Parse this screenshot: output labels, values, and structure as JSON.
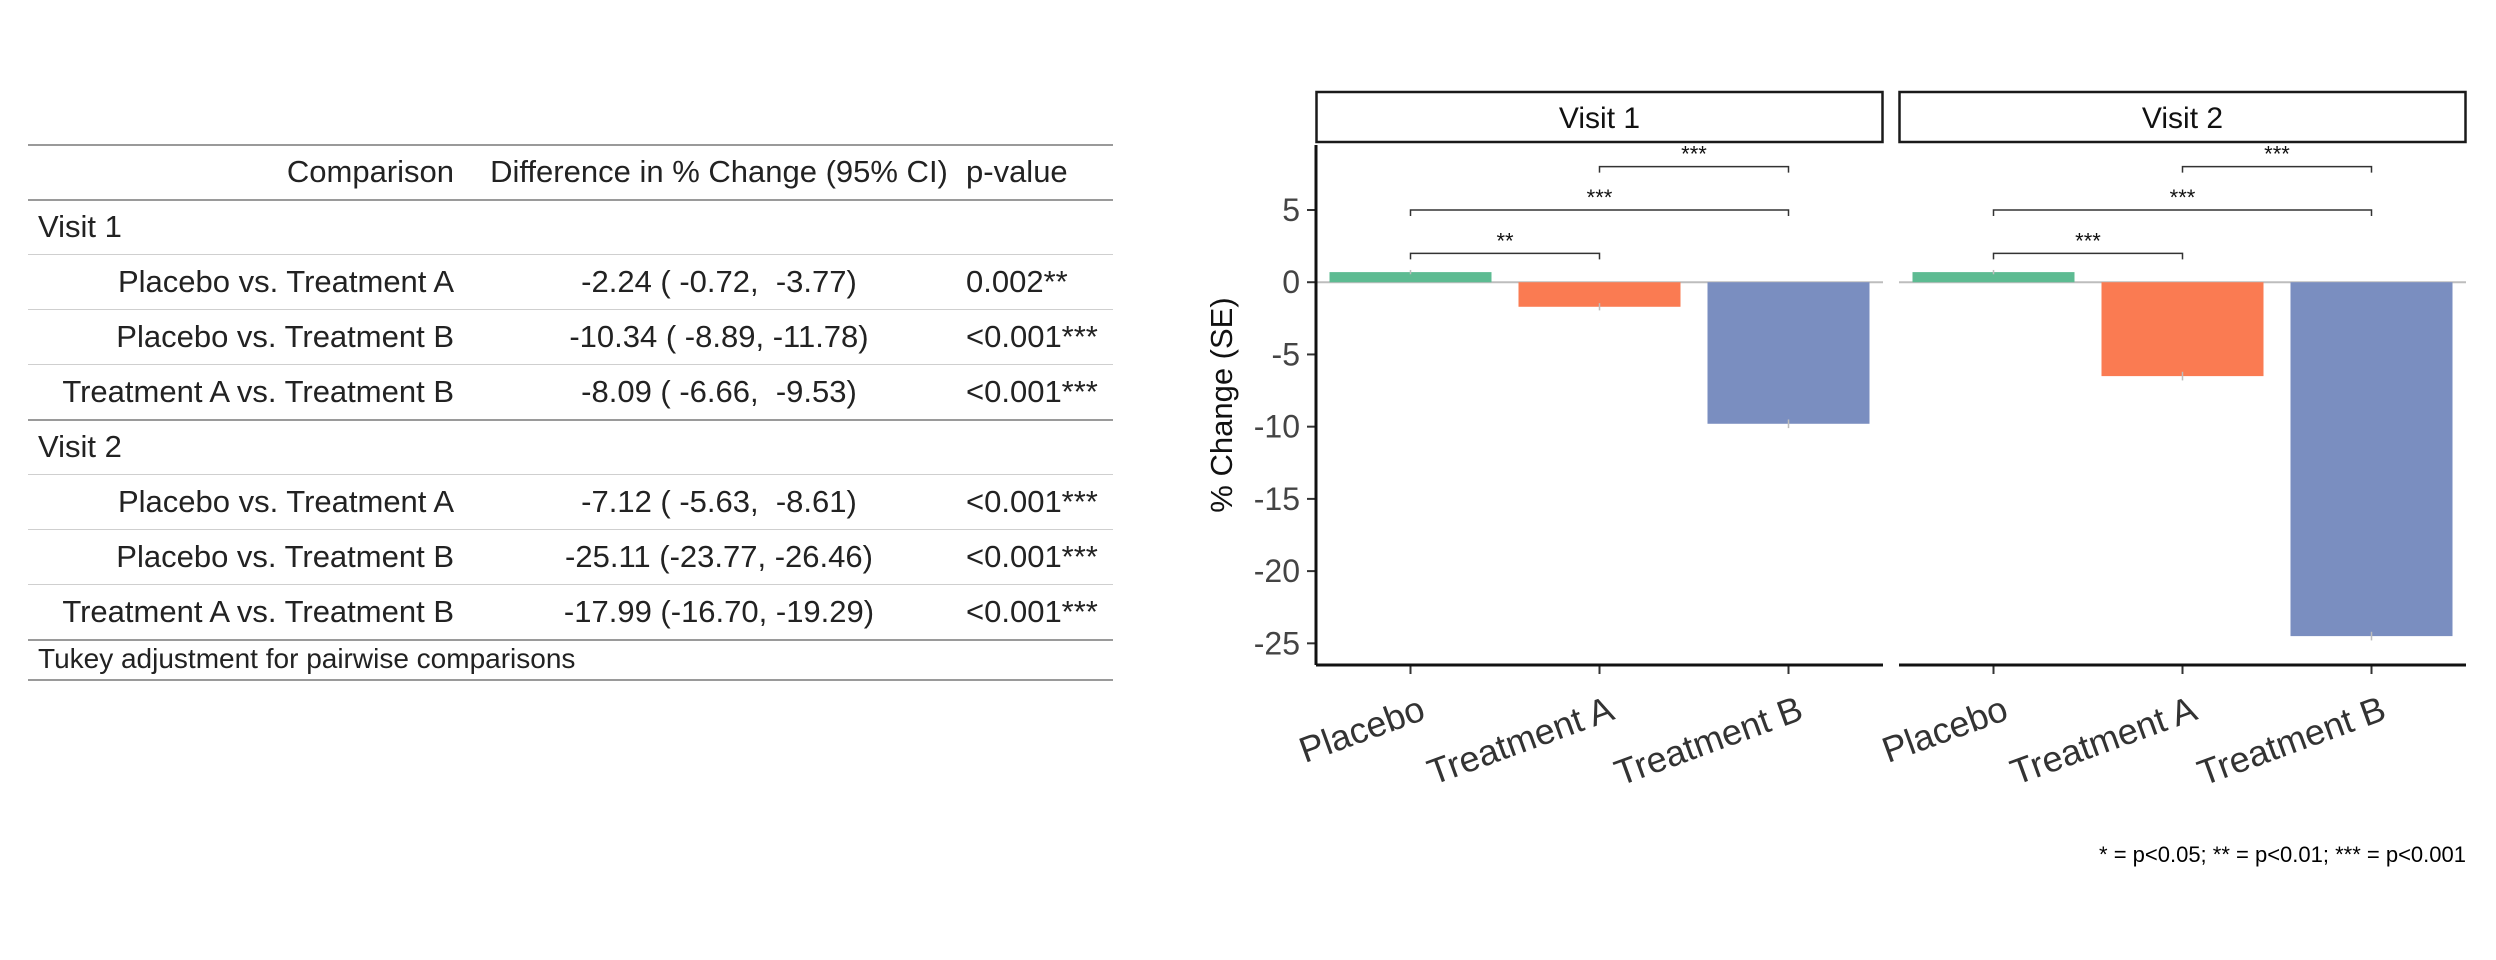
{
  "table": {
    "headers": {
      "comparison": "Comparison",
      "difference": "Difference in % Change (95% CI)",
      "pvalue": "p-value"
    },
    "groups": [
      {
        "label": "Visit 1",
        "rows": [
          {
            "comparison": "Placebo vs. Treatment A",
            "difference": "-2.24 ( -0.72,  -3.77)",
            "pvalue": "0.002**",
            "indent": true
          },
          {
            "comparison": "Placebo vs. Treatment B",
            "difference": "-10.34 ( -8.89, -11.78)",
            "pvalue": "<0.001***",
            "indent": true
          },
          {
            "comparison": "Treatment A vs. Treatment B",
            "difference": "-8.09 ( -6.66,  -9.53)",
            "pvalue": "<0.001***",
            "indent": false
          }
        ]
      },
      {
        "label": "Visit 2",
        "rows": [
          {
            "comparison": "Placebo vs. Treatment A",
            "difference": "-7.12 ( -5.63,  -8.61)",
            "pvalue": "<0.001***",
            "indent": true
          },
          {
            "comparison": "Placebo vs. Treatment B",
            "difference": "-25.11 (-23.77, -26.46)",
            "pvalue": "<0.001***",
            "indent": true
          },
          {
            "comparison": "Treatment A vs. Treatment B",
            "difference": "-17.99 (-16.70, -19.29)",
            "pvalue": "<0.001***",
            "indent": false
          }
        ]
      }
    ],
    "footnote": "Tukey adjustment for pairwise comparisons"
  },
  "chart_data": {
    "type": "bar",
    "ylabel": "% Change (SE)",
    "ylim": [
      -26.5,
      9.5
    ],
    "yticks": [
      5,
      0,
      -5,
      -10,
      -15,
      -20,
      -25
    ],
    "categories": [
      "Placebo",
      "Treatment A",
      "Treatment B"
    ],
    "colors": {
      "Placebo": "#5DBB92",
      "Treatment A": "#FA7B52",
      "Treatment B": "#7A8EC0"
    },
    "panels": [
      {
        "label": "Visit 1",
        "values": [
          0.7,
          -1.7,
          -9.8
        ],
        "se": [
          0.15,
          0.25,
          0.3
        ],
        "brackets": [
          {
            "from": 0,
            "to": 1,
            "y": 2.0,
            "label": "**"
          },
          {
            "from": 0,
            "to": 2,
            "y": 5.0,
            "label": "***"
          },
          {
            "from": 1,
            "to": 2,
            "y": 8.0,
            "label": "***"
          }
        ]
      },
      {
        "label": "Visit 2",
        "values": [
          0.7,
          -6.5,
          -24.5
        ],
        "se": [
          0.15,
          0.3,
          0.3
        ],
        "brackets": [
          {
            "from": 0,
            "to": 1,
            "y": 2.0,
            "label": "***"
          },
          {
            "from": 0,
            "to": 2,
            "y": 5.0,
            "label": "***"
          },
          {
            "from": 1,
            "to": 2,
            "y": 8.0,
            "label": "***"
          }
        ]
      }
    ],
    "caption": "* = p<0.05; ** = p<0.01; *** = p<0.001"
  }
}
